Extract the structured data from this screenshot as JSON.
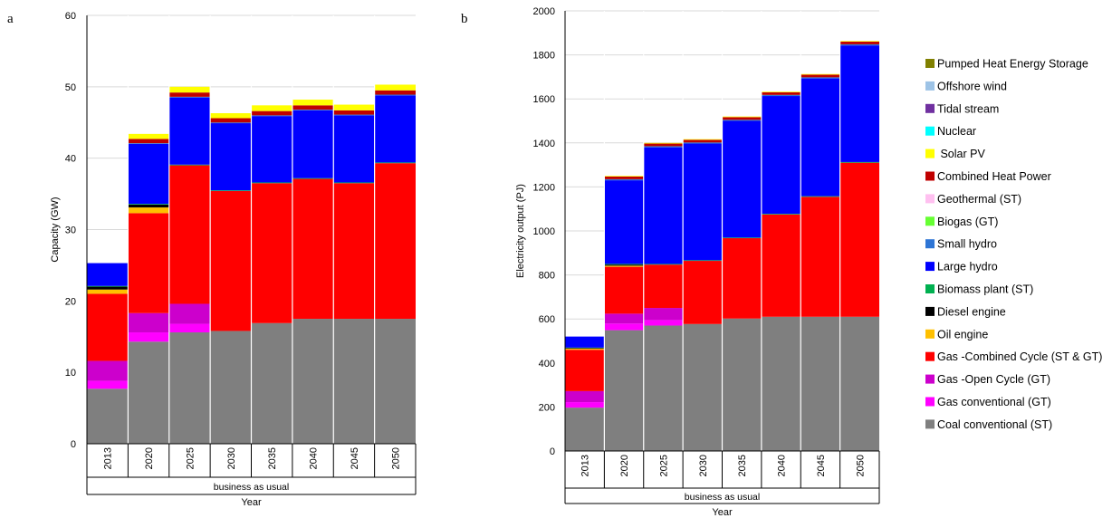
{
  "chart_data": [
    {
      "type": "bar",
      "stacked": true,
      "panel": "a",
      "categories": [
        "2013",
        "2020",
        "2025",
        "2030",
        "2035",
        "2040",
        "2045",
        "2050"
      ],
      "group_label": "business as usual",
      "xlabel": "Year",
      "ylabel": "Capacity (GW)",
      "ylim": [
        0,
        60
      ],
      "yticks": [
        0,
        10,
        20,
        30,
        40,
        50,
        60
      ],
      "series": [
        {
          "name": "Coal conventional (ST)",
          "color": "#7f7f7f",
          "values": [
            7.7,
            14.3,
            15.6,
            15.8,
            16.9,
            17.5,
            17.5,
            17.5
          ]
        },
        {
          "name": "Gas conventional (GT)",
          "color": "#ff00ff",
          "values": [
            1.1,
            1.3,
            1.2,
            0,
            0,
            0,
            0,
            0
          ]
        },
        {
          "name": "Gas -Open Cycle (GT)",
          "color": "#cc00cc",
          "values": [
            2.8,
            2.7,
            2.8,
            0,
            0,
            0,
            0,
            0
          ]
        },
        {
          "name": "Gas -Combined Cycle (ST & GT)",
          "color": "#ff0000",
          "values": [
            9.4,
            14.0,
            19.4,
            19.6,
            19.6,
            19.6,
            19.0,
            21.8
          ]
        },
        {
          "name": "Oil engine",
          "color": "#ffc000",
          "values": [
            0.6,
            0.8,
            0,
            0,
            0,
            0,
            0,
            0
          ]
        },
        {
          "name": "Diesel engine",
          "color": "#000000",
          "values": [
            0.4,
            0.4,
            0,
            0,
            0,
            0,
            0,
            0
          ]
        },
        {
          "name": "Biomass plant (ST)",
          "color": "#00b050",
          "values": [
            0.1,
            0.1,
            0.1,
            0.1,
            0.1,
            0.1,
            0.1,
            0.1
          ]
        },
        {
          "name": "Large hydro",
          "color": "#0000ff",
          "values": [
            3.2,
            8.4,
            9.4,
            9.4,
            9.3,
            9.5,
            9.4,
            9.4
          ]
        },
        {
          "name": "Small hydro",
          "color": "#2e75d5",
          "values": [
            0,
            0.1,
            0.1,
            0.1,
            0.1,
            0.1,
            0.1,
            0.1
          ]
        },
        {
          "name": "Biogas (GT)",
          "color": "#66ff33",
          "values": [
            0,
            0,
            0,
            0,
            0,
            0,
            0,
            0
          ]
        },
        {
          "name": "Geothermal (ST)",
          "color": "#ffc0f0",
          "values": [
            0,
            0,
            0,
            0,
            0,
            0,
            0,
            0
          ]
        },
        {
          "name": "Combined Heat Power",
          "color": "#c00000",
          "values": [
            0,
            0.6,
            0.6,
            0.6,
            0.6,
            0.6,
            0.6,
            0.6
          ]
        },
        {
          "name": " Solar PV",
          "color": "#ffff00",
          "values": [
            0,
            0.7,
            0.8,
            0.7,
            0.8,
            0.8,
            0.8,
            0.8
          ]
        },
        {
          "name": "Nuclear",
          "color": "#00ffff",
          "values": [
            0,
            0,
            0,
            0,
            0,
            0,
            0,
            0
          ]
        },
        {
          "name": "Tidal stream",
          "color": "#7030a0",
          "values": [
            0,
            0,
            0,
            0,
            0,
            0,
            0,
            0
          ]
        },
        {
          "name": "Offshore wind",
          "color": "#9dc3e6",
          "values": [
            0,
            0,
            0,
            0,
            0,
            0,
            0,
            0
          ]
        },
        {
          "name": "Pumped Heat Energy Storage",
          "color": "#808000",
          "values": [
            0,
            0,
            0,
            0,
            0,
            0,
            0,
            0
          ]
        }
      ]
    },
    {
      "type": "bar",
      "stacked": true,
      "panel": "b",
      "categories": [
        "2013",
        "2020",
        "2025",
        "2030",
        "2035",
        "2040",
        "2045",
        "2050"
      ],
      "group_label": "business as usual",
      "xlabel": "Year",
      "ylabel": "Electricity output  (PJ)",
      "ylim": [
        0,
        2000
      ],
      "yticks": [
        0,
        200,
        400,
        600,
        800,
        1000,
        1200,
        1400,
        1600,
        1800,
        2000
      ],
      "series": [
        {
          "name": "Coal conventional (ST)",
          "color": "#7f7f7f",
          "values": [
            197,
            549,
            570,
            577,
            602,
            610,
            610,
            610
          ]
        },
        {
          "name": "Gas conventional (GT)",
          "color": "#ff00ff",
          "values": [
            25,
            30,
            25,
            0,
            0,
            0,
            0,
            0
          ]
        },
        {
          "name": "Gas -Open Cycle (GT)",
          "color": "#cc00cc",
          "values": [
            50,
            45,
            55,
            0,
            0,
            0,
            0,
            0
          ]
        },
        {
          "name": "Gas -Combined Cycle (ST & GT)",
          "color": "#ff0000",
          "values": [
            188,
            213,
            197,
            287,
            365,
            465,
            545,
            700
          ]
        },
        {
          "name": "Oil engine",
          "color": "#ffc000",
          "values": [
            5,
            5,
            0,
            0,
            0,
            0,
            0,
            0
          ]
        },
        {
          "name": "Diesel engine",
          "color": "#000000",
          "values": [
            3,
            5,
            0,
            0,
            0,
            0,
            0,
            0
          ]
        },
        {
          "name": "Biomass plant (ST)",
          "color": "#00b050",
          "values": [
            2,
            3,
            3,
            3,
            3,
            3,
            3,
            3
          ]
        },
        {
          "name": "Large hydro",
          "color": "#0000ff",
          "values": [
            50,
            380,
            530,
            530,
            530,
            535,
            535,
            530
          ]
        },
        {
          "name": "Small hydro",
          "color": "#2e75d5",
          "values": [
            0,
            5,
            5,
            5,
            5,
            5,
            5,
            5
          ]
        },
        {
          "name": "Biogas (GT)",
          "color": "#66ff33",
          "values": [
            0,
            0,
            0,
            0,
            0,
            0,
            0,
            0
          ]
        },
        {
          "name": "Geothermal (ST)",
          "color": "#ffc0f0",
          "values": [
            0,
            0,
            0,
            0,
            0,
            0,
            0,
            0
          ]
        },
        {
          "name": "Combined Heat Power",
          "color": "#c00000",
          "values": [
            0,
            12,
            12,
            12,
            12,
            12,
            12,
            12
          ]
        },
        {
          "name": " Solar PV",
          "color": "#ffff00",
          "values": [
            0,
            3,
            3,
            3,
            3,
            3,
            3,
            3
          ]
        },
        {
          "name": "Nuclear",
          "color": "#00ffff",
          "values": [
            0,
            0,
            0,
            0,
            0,
            0,
            0,
            0
          ]
        },
        {
          "name": "Tidal stream",
          "color": "#7030a0",
          "values": [
            0,
            0,
            0,
            0,
            0,
            0,
            0,
            0
          ]
        },
        {
          "name": "Offshore wind",
          "color": "#9dc3e6",
          "values": [
            0,
            0,
            0,
            0,
            0,
            0,
            0,
            0
          ]
        },
        {
          "name": "Pumped Heat Energy Storage",
          "color": "#808000",
          "values": [
            0,
            0,
            0,
            0,
            0,
            0,
            0,
            0
          ]
        }
      ]
    }
  ],
  "legend": {
    "placement": "right",
    "items": [
      {
        "label": "Pumped Heat Energy Storage",
        "color": "#808000",
        "icon": "legend-swatch"
      },
      {
        "label": "Offshore wind",
        "color": "#9dc3e6",
        "icon": "legend-swatch"
      },
      {
        "label": "Tidal stream",
        "color": "#7030a0",
        "icon": "legend-swatch"
      },
      {
        "label": "Nuclear",
        "color": "#00ffff",
        "icon": "legend-swatch"
      },
      {
        "label": " Solar PV",
        "color": "#ffff00",
        "icon": "legend-swatch"
      },
      {
        "label": "Combined Heat Power",
        "color": "#c00000",
        "icon": "legend-swatch"
      },
      {
        "label": "Geothermal (ST)",
        "color": "#ffc0f0",
        "icon": "legend-swatch"
      },
      {
        "label": "Biogas (GT)",
        "color": "#66ff33",
        "icon": "legend-swatch"
      },
      {
        "label": "Small hydro",
        "color": "#2e75d5",
        "icon": "legend-swatch"
      },
      {
        "label": "Large hydro",
        "color": "#0000ff",
        "icon": "legend-swatch"
      },
      {
        "label": "Biomass plant (ST)",
        "color": "#00b050",
        "icon": "legend-swatch"
      },
      {
        "label": "Diesel engine",
        "color": "#000000",
        "icon": "legend-swatch"
      },
      {
        "label": "Oil engine",
        "color": "#ffc000",
        "icon": "legend-swatch"
      },
      {
        "label": "Gas -Combined Cycle (ST & GT)",
        "color": "#ff0000",
        "icon": "legend-swatch"
      },
      {
        "label": "Gas -Open Cycle (GT)",
        "color": "#cc00cc",
        "icon": "legend-swatch"
      },
      {
        "label": "Gas conventional (GT)",
        "color": "#ff00ff",
        "icon": "legend-swatch"
      },
      {
        "label": "Coal conventional (ST)",
        "color": "#7f7f7f",
        "icon": "legend-swatch"
      }
    ]
  }
}
